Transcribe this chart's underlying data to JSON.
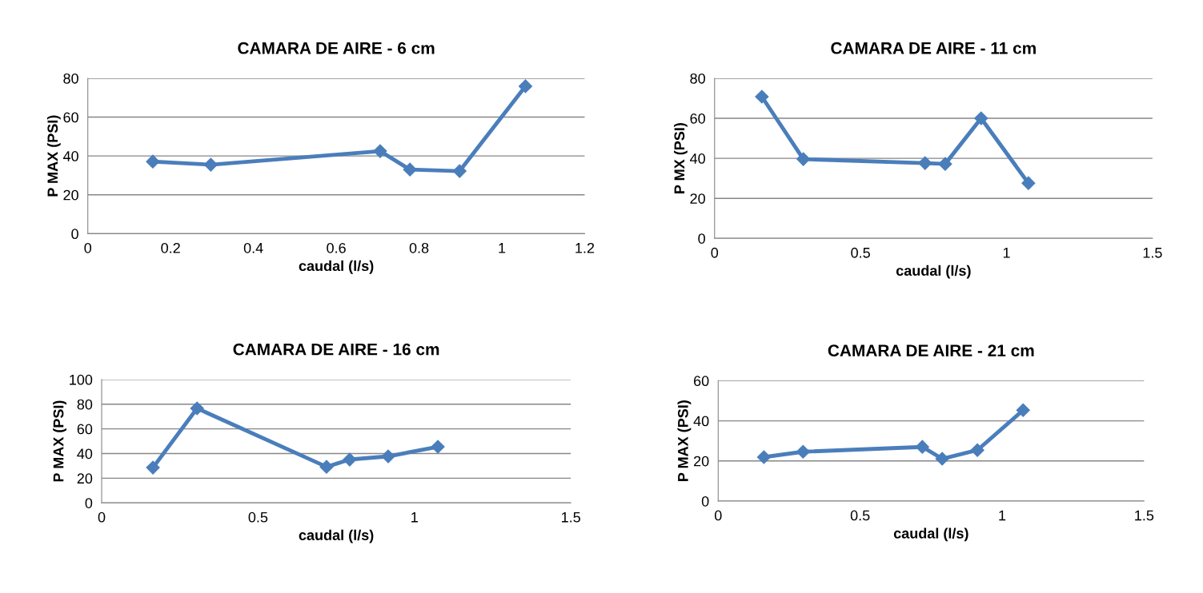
{
  "chart_data": [
    {
      "type": "line",
      "title": "CAMARA DE AIRE - 6 cm",
      "xlabel": "caudal (l/s)",
      "ylabel": "P MAX (PSI)",
      "xlim": [
        0,
        1.2
      ],
      "xticks": [
        0,
        0.2,
        0.4,
        0.6,
        0.8,
        1,
        1.2
      ],
      "ylim": [
        0,
        80
      ],
      "yticks": [
        0,
        20,
        40,
        60,
        80
      ],
      "grid": "y",
      "marker": "diamond",
      "line_style": "solid",
      "series": [
        {
          "color": "#4a7ebb",
          "x": [
            0.157,
            0.297,
            0.706,
            0.778,
            0.898,
            1.057
          ],
          "values": [
            37.1,
            35.5,
            42.5,
            33,
            32.2,
            75.9
          ]
        }
      ]
    },
    {
      "type": "line",
      "title": "CAMARA DE AIRE - 11 cm",
      "xlabel": "caudal (l/s)",
      "ylabel": "P MX (PSI)",
      "xlim": [
        0,
        1.5
      ],
      "xticks": [
        0,
        0.5,
        1,
        1.5
      ],
      "ylim": [
        0,
        80
      ],
      "yticks": [
        0,
        20,
        40,
        60,
        80
      ],
      "grid": "y",
      "marker": "diamond",
      "line_style": "solid",
      "series": [
        {
          "color": "#4a7ebb",
          "x": [
            0.162,
            0.304,
            0.721,
            0.79,
            0.913,
            1.075
          ],
          "values": [
            70.8,
            39.6,
            37.6,
            37.2,
            60,
            27.6
          ]
        }
      ]
    },
    {
      "type": "line",
      "title": "CAMARA DE AIRE - 16 cm",
      "xlabel": "caudal (l/s)",
      "ylabel": "P MAX (PSI)",
      "xlim": [
        0,
        1.5
      ],
      "xticks": [
        0,
        0.5,
        1,
        1.5
      ],
      "ylim": [
        0,
        100
      ],
      "yticks": [
        0,
        20,
        40,
        60,
        80,
        100
      ],
      "grid": "y",
      "marker": "diamond",
      "line_style": "solid",
      "series": [
        {
          "color": "#4a7ebb",
          "x": [
            0.164,
            0.305,
            0.719,
            0.793,
            0.916,
            1.075
          ],
          "values": [
            28.6,
            76.6,
            29.2,
            35.1,
            37.7,
            45.5
          ]
        }
      ]
    },
    {
      "type": "line",
      "title": "CAMARA DE AIRE - 21 cm",
      "xlabel": "caudal (l/s)",
      "ylabel": "P MAX (PSI)",
      "xlim": [
        0,
        1.5
      ],
      "xticks": [
        0,
        0.5,
        1,
        1.5
      ],
      "ylim": [
        0,
        60
      ],
      "yticks": [
        0,
        20,
        40,
        60
      ],
      "grid": "y",
      "marker": "diamond",
      "line_style": "solid",
      "series": [
        {
          "color": "#4a7ebb",
          "x": [
            0.161,
            0.299,
            0.719,
            0.789,
            0.913,
            1.074
          ],
          "values": [
            21.9,
            24.6,
            27.0,
            21.1,
            25.4,
            45.3
          ]
        }
      ]
    }
  ]
}
